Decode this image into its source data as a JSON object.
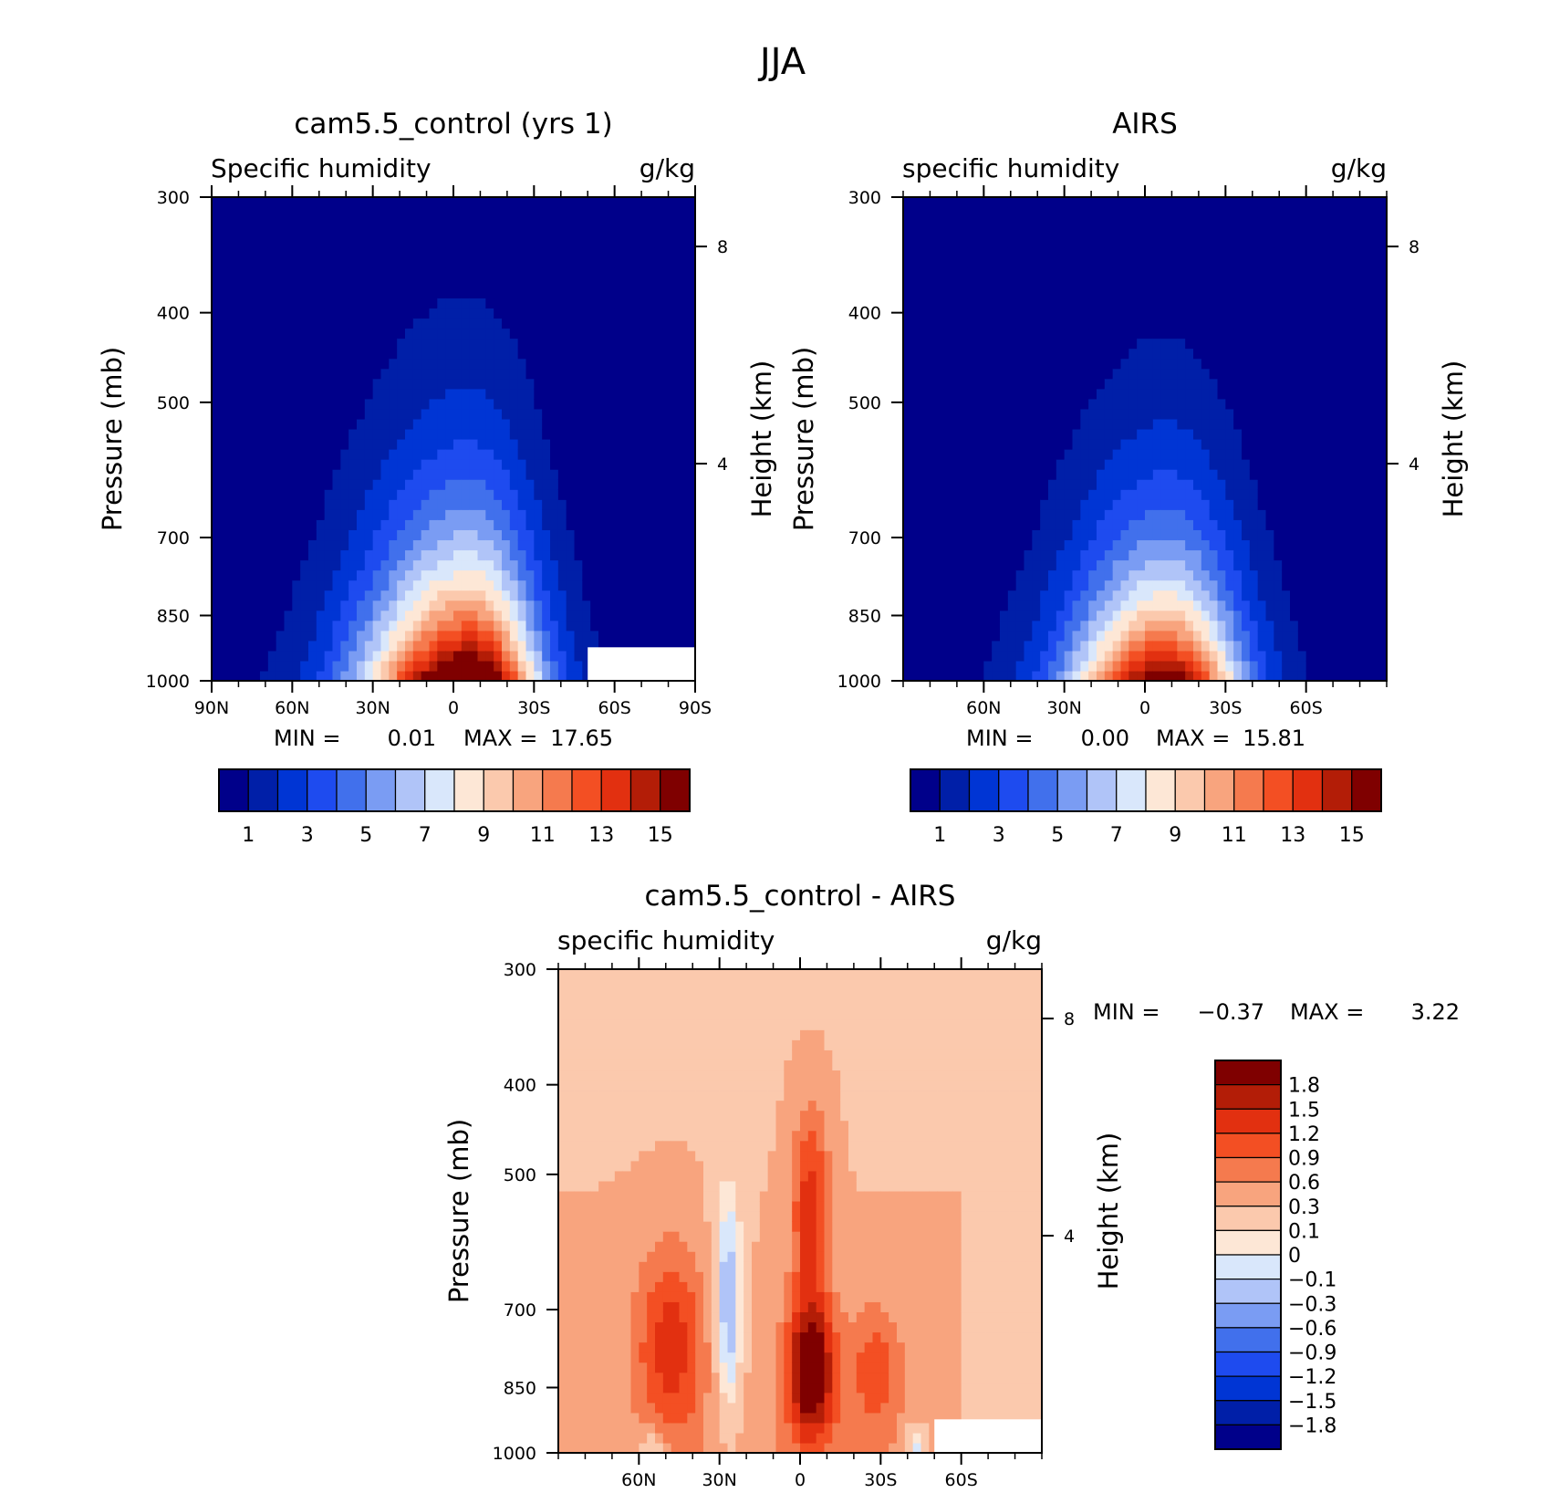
{
  "figure_title": "JJA",
  "colors": {
    "seq": [
      "#00008a",
      "#001fa8",
      "#0035d4",
      "#1e4bef",
      "#4170ec",
      "#7a9cf3",
      "#b0c4f8",
      "#d9e7fb",
      "#fde7d6",
      "#fbc9ad",
      "#f8a47e",
      "#f57a4e",
      "#f34f23",
      "#e23010",
      "#b31d07",
      "#7f0000"
    ],
    "div": [
      "#00008a",
      "#001fa8",
      "#0035d4",
      "#1e4bef",
      "#4170ec",
      "#7a9cf3",
      "#b0c4f8",
      "#d9e7fb",
      "#fde7d6",
      "#fbc9ad",
      "#f8a47e",
      "#f57a4e",
      "#f34f23",
      "#e23010",
      "#b31d07",
      "#7f0000"
    ]
  },
  "chart_data": [
    {
      "type": "heatmap",
      "title": "cam5.5_control (yrs 1)",
      "left_label": "Specific humidity",
      "right_label": "g/kg",
      "ylabel": "Pressure (mb)",
      "y2label": "Height (km)",
      "xlim": [
        90,
        -90
      ],
      "ylim": [
        1000,
        300
      ],
      "yscale": "log",
      "x_ticks": [
        90,
        60,
        30,
        0,
        -30,
        -60,
        -90
      ],
      "x_tick_labels": [
        "90N",
        "60N",
        "30N",
        "0",
        "30S",
        "60S",
        "90S"
      ],
      "y_ticks": [
        300,
        400,
        500,
        700,
        850,
        1000
      ],
      "y_tick_labels": [
        "300",
        "400",
        "500",
        "700",
        "850",
        "1000"
      ],
      "y2_ticks": [
        8,
        4
      ],
      "y2_tick_labels": [
        "8",
        "4"
      ],
      "stats": {
        "min_label": "MIN =",
        "min_value": "0.01",
        "max_label": "MAX =",
        "max_value": "17.65"
      },
      "colorbar_labels": [
        "1",
        "3",
        "5",
        "7",
        "9",
        "11",
        "13",
        "15"
      ],
      "field": {
        "peak_lat": -6,
        "peak_value": 17.65,
        "nh_width": 40,
        "sh_width": 26,
        "scale_height": 2.4
      },
      "missing_region": [
        {
          "lat_min": -90,
          "lat_max": -50,
          "p_min": 920,
          "p_max": 1000
        }
      ]
    },
    {
      "type": "heatmap",
      "title": "AIRS",
      "left_label": "specific humidity",
      "right_label": "g/kg",
      "ylabel": "Pressure (mb)",
      "y2label": "Height (km)",
      "xlim": [
        90,
        -90
      ],
      "ylim": [
        1000,
        300
      ],
      "yscale": "log",
      "x_ticks": [
        60,
        30,
        0,
        -30,
        -60
      ],
      "x_tick_labels": [
        "60N",
        "30N",
        "0",
        "30S",
        "60S"
      ],
      "y_ticks": [
        300,
        400,
        500,
        700,
        850,
        1000
      ],
      "y_tick_labels": [
        "300",
        "400",
        "500",
        "700",
        "850",
        "1000"
      ],
      "y2_ticks": [
        8,
        4
      ],
      "y2_tick_labels": [
        "8",
        "4"
      ],
      "stats": {
        "min_label": "MIN =",
        "min_value": "0.00",
        "max_label": "MAX =",
        "max_value": "15.81"
      },
      "colorbar_labels": [
        "1",
        "3",
        "5",
        "7",
        "9",
        "11",
        "13",
        "15"
      ],
      "field": {
        "peak_lat": -8,
        "peak_value": 15.81,
        "nh_width": 36,
        "sh_width": 28,
        "scale_height": 2.2
      },
      "missing_region": []
    },
    {
      "type": "heatmap",
      "title": "cam5.5_control - AIRS",
      "left_label": "specific humidity",
      "right_label": "g/kg",
      "ylabel": "Pressure (mb)",
      "y2label": "Height (km)",
      "xlim": [
        90,
        -90
      ],
      "ylim": [
        1000,
        300
      ],
      "yscale": "log",
      "x_ticks": [
        60,
        30,
        0,
        -30,
        -60
      ],
      "x_tick_labels": [
        "60N",
        "30N",
        "0",
        "30S",
        "60S"
      ],
      "y_ticks": [
        300,
        400,
        500,
        700,
        850,
        1000
      ],
      "y_tick_labels": [
        "300",
        "400",
        "500",
        "700",
        "850",
        "1000"
      ],
      "y2_ticks": [
        8,
        4
      ],
      "y2_tick_labels": [
        "8",
        "4"
      ],
      "stats": {
        "min_label": "MIN =",
        "min_value": "-0.37",
        "max_label": "MAX =",
        "max_value": "3.22"
      },
      "colorbar_labels": [
        "1.8",
        "1.5",
        "1.2",
        "0.9",
        "0.6",
        "0.3",
        "0.1",
        "0",
        "-0.1",
        "-0.3",
        "-0.6",
        "-0.9",
        "-1.2",
        "-1.5",
        "-1.8"
      ],
      "levels": [
        -1.8,
        -1.5,
        -1.2,
        -0.9,
        -0.6,
        -0.3,
        -0.1,
        0,
        0.1,
        0.3,
        0.6,
        0.9,
        1.2,
        1.5,
        1.8
      ],
      "missing_region": [
        {
          "lat_min": -90,
          "lat_max": -50,
          "p_min": 920,
          "p_max": 1000
        }
      ]
    }
  ]
}
